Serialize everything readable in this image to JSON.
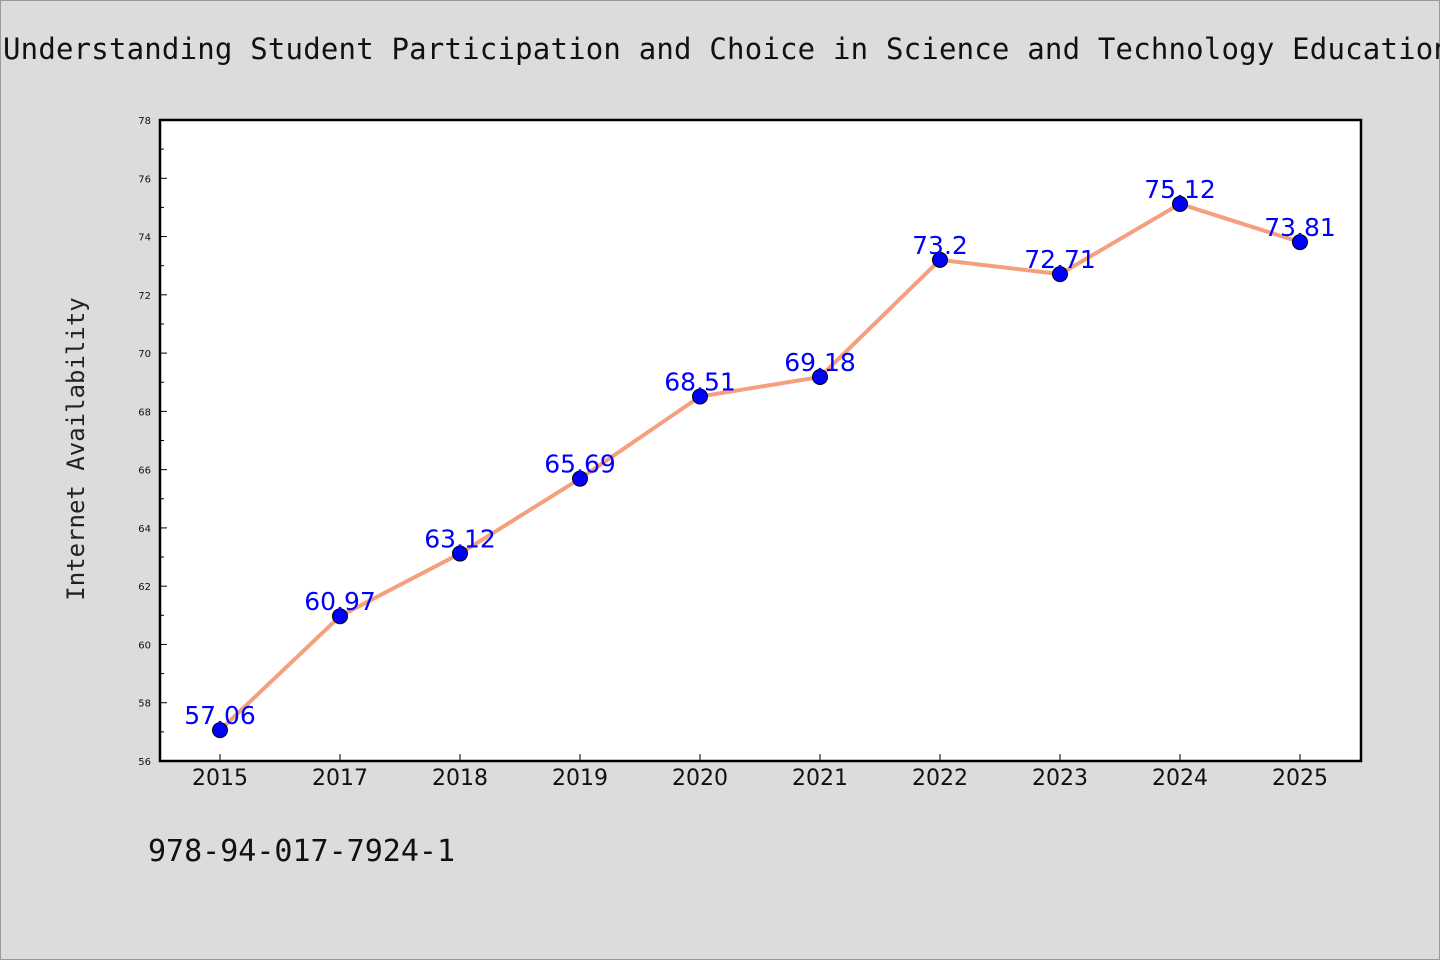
{
  "page": {
    "background": "#dcdcdc",
    "isbn": "978-94-017-7924-1"
  },
  "chart_data": {
    "type": "line",
    "title": "Understanding Student Participation and Choice in Science and Technology Education",
    "xlabel": "",
    "ylabel": "Internet Availability",
    "categories": [
      "2015",
      "2017",
      "2018",
      "2019",
      "2020",
      "2021",
      "2022",
      "2023",
      "2024",
      "2025"
    ],
    "series": [
      {
        "values": [
          57.06,
          60.97,
          63.12,
          65.69,
          68.51,
          69.18,
          73.2,
          72.71,
          75.12,
          73.81
        ],
        "labels": [
          "57.06",
          "60.97",
          "63.12",
          "65.69",
          "68.51",
          "69.18",
          "73.2",
          "72.71",
          "75.12",
          "73.81"
        ],
        "line_color": "#f4a07e",
        "marker_color": "#0000ff"
      }
    ],
    "ylim": [
      56,
      78
    ],
    "yticks": [
      "56",
      "58",
      "60",
      "62",
      "64",
      "66",
      "68",
      "70",
      "72",
      "74",
      "76",
      "78"
    ],
    "grid": false,
    "legend": "none"
  }
}
